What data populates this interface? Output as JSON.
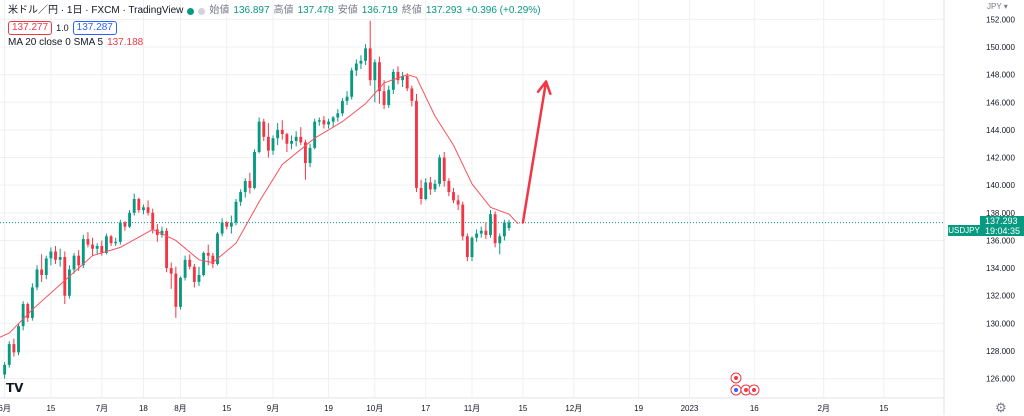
{
  "legend": {
    "symbol": "米ドル／円 · 1日 · FXCM · TradingView",
    "open_label": "始値",
    "open": "136.897",
    "high_label": "高値",
    "high": "137.478",
    "low_label": "安値",
    "low": "136.719",
    "close_label": "終値",
    "close": "137.293",
    "change": "+0.396 (+0.29%)",
    "bid": "137.277",
    "spread": "1.0",
    "ask": "137.287",
    "ma_label": "MA 20 close 0 SMA 5",
    "ma_value": "137.188"
  },
  "price_axis": {
    "unit": "JPY",
    "ticks": [
      "126.000",
      "128.000",
      "130.000",
      "132.000",
      "134.000",
      "136.000",
      "138.000",
      "140.000",
      "142.000",
      "144.000",
      "146.000",
      "148.000",
      "150.000",
      "152.000"
    ]
  },
  "last_price": {
    "symbol": "USDJPY",
    "price": "137.293",
    "countdown": "19:04:35"
  },
  "time_axis": {
    "ticks": [
      {
        "label": "6月",
        "bar": 0
      },
      {
        "label": "15",
        "bar": 10
      },
      {
        "label": "7月",
        "bar": 21
      },
      {
        "label": "18",
        "bar": 30
      },
      {
        "label": "8月",
        "bar": 38
      },
      {
        "label": "15",
        "bar": 48
      },
      {
        "label": "9月",
        "bar": 58
      },
      {
        "label": "19",
        "bar": 70
      },
      {
        "label": "10月",
        "bar": 80
      },
      {
        "label": "17",
        "bar": 91
      },
      {
        "label": "11月",
        "bar": 101
      },
      {
        "label": "15",
        "bar": 112
      },
      {
        "label": "12月",
        "bar": 123
      },
      {
        "label": "19",
        "bar": 137
      },
      {
        "label": "2023",
        "bar": 148
      },
      {
        "label": "16",
        "bar": 162
      },
      {
        "label": "2月",
        "bar": 177
      },
      {
        "label": "15",
        "bar": 190
      }
    ]
  },
  "colors": {
    "up": "#089981",
    "down": "#f23645",
    "ma": "#f7525f",
    "arrow": "#f23645",
    "grid": "#eef0f3"
  },
  "icons": [
    "tradingview-logo-icon",
    "gear-icon",
    "event-flag-icon"
  ],
  "chart_data": {
    "type": "candlestick",
    "title": "米ドル／円 · 1日 · FXCM",
    "ylabel": "JPY",
    "ylim": [
      124.6,
      153.4
    ],
    "x_range_bars": [
      -1,
      203
    ],
    "ohlc": [
      [
        126.3,
        127.2,
        126.0,
        127.0
      ],
      [
        127.0,
        128.7,
        126.8,
        128.5
      ],
      [
        128.5,
        128.9,
        127.6,
        127.9
      ],
      [
        127.9,
        130.0,
        127.7,
        129.8
      ],
      [
        129.8,
        131.6,
        129.5,
        131.4
      ],
      [
        131.4,
        131.5,
        130.1,
        130.4
      ],
      [
        130.4,
        132.9,
        130.2,
        132.6
      ],
      [
        132.6,
        134.2,
        132.4,
        133.9
      ],
      [
        133.9,
        135.0,
        133.0,
        133.5
      ],
      [
        133.5,
        134.9,
        133.2,
        134.7
      ],
      [
        134.7,
        135.5,
        134.2,
        135.2
      ],
      [
        135.2,
        135.6,
        134.3,
        134.6
      ],
      [
        134.6,
        135.4,
        134.1,
        134.8
      ],
      [
        134.8,
        135.2,
        131.4,
        132.0
      ],
      [
        132.0,
        134.2,
        131.8,
        133.9
      ],
      [
        133.9,
        135.1,
        133.6,
        134.9
      ],
      [
        134.9,
        135.3,
        133.8,
        134.2
      ],
      [
        134.2,
        136.4,
        134.0,
        136.1
      ],
      [
        136.1,
        136.6,
        135.5,
        135.7
      ],
      [
        135.7,
        136.2,
        134.9,
        135.4
      ],
      [
        135.4,
        135.8,
        135.0,
        135.6
      ],
      [
        135.6,
        136.0,
        134.9,
        135.1
      ],
      [
        135.1,
        136.5,
        135.0,
        136.3
      ],
      [
        136.3,
        136.4,
        135.6,
        135.8
      ],
      [
        135.8,
        136.2,
        135.6,
        135.9
      ],
      [
        135.9,
        137.5,
        135.7,
        137.3
      ],
      [
        137.3,
        137.4,
        136.7,
        137.0
      ],
      [
        137.0,
        138.2,
        136.9,
        138.0
      ],
      [
        138.0,
        139.4,
        137.8,
        139.0
      ],
      [
        139.0,
        139.1,
        138.0,
        138.2
      ],
      [
        138.2,
        138.6,
        137.9,
        138.4
      ],
      [
        138.4,
        138.9,
        137.8,
        138.0
      ],
      [
        138.0,
        138.3,
        136.5,
        136.8
      ],
      [
        136.8,
        137.2,
        135.9,
        136.4
      ],
      [
        136.4,
        137.0,
        136.2,
        136.7
      ],
      [
        136.7,
        136.9,
        133.7,
        134.0
      ],
      [
        134.0,
        134.4,
        132.5,
        133.6
      ],
      [
        133.6,
        134.1,
        130.4,
        131.2
      ],
      [
        131.2,
        133.4,
        131.0,
        133.3
      ],
      [
        133.3,
        134.9,
        133.1,
        134.6
      ],
      [
        134.6,
        135.0,
        133.9,
        134.1
      ],
      [
        134.1,
        134.3,
        132.6,
        133.0
      ],
      [
        133.0,
        134.1,
        132.7,
        133.5
      ],
      [
        133.5,
        135.2,
        133.4,
        135.1
      ],
      [
        135.1,
        135.7,
        134.2,
        134.9
      ],
      [
        134.9,
        135.1,
        134.0,
        134.3
      ],
      [
        134.3,
        136.6,
        134.2,
        136.5
      ],
      [
        136.5,
        137.6,
        136.3,
        137.3
      ],
      [
        137.3,
        137.4,
        136.8,
        137.0
      ],
      [
        137.0,
        137.8,
        136.5,
        137.3
      ],
      [
        137.3,
        139.0,
        137.1,
        138.8
      ],
      [
        138.8,
        139.7,
        138.5,
        139.5
      ],
      [
        139.5,
        140.5,
        139.1,
        140.3
      ],
      [
        140.3,
        140.9,
        139.4,
        139.8
      ],
      [
        139.8,
        142.6,
        139.7,
        142.4
      ],
      [
        142.4,
        144.9,
        142.3,
        144.6
      ],
      [
        144.6,
        144.8,
        143.2,
        143.5
      ],
      [
        143.5,
        144.5,
        142.0,
        142.5
      ],
      [
        142.5,
        143.6,
        142.2,
        143.4
      ],
      [
        143.4,
        144.5,
        142.9,
        144.0
      ],
      [
        144.0,
        144.7,
        143.3,
        143.7
      ],
      [
        143.7,
        143.8,
        142.4,
        143.0
      ],
      [
        143.0,
        143.6,
        142.6,
        143.2
      ],
      [
        143.2,
        143.9,
        142.8,
        143.5
      ],
      [
        143.5,
        144.2,
        142.9,
        143.1
      ],
      [
        143.1,
        143.3,
        140.4,
        141.6
      ],
      [
        141.6,
        143.0,
        141.3,
        142.7
      ],
      [
        142.7,
        144.8,
        142.6,
        144.6
      ],
      [
        144.6,
        144.9,
        144.3,
        144.7
      ],
      [
        144.7,
        145.0,
        144.1,
        144.4
      ],
      [
        144.4,
        144.8,
        144.1,
        144.6
      ],
      [
        144.6,
        145.0,
        144.2,
        144.9
      ],
      [
        144.9,
        145.5,
        144.6,
        145.2
      ],
      [
        145.2,
        146.3,
        145.0,
        146.1
      ],
      [
        146.1,
        146.8,
        145.8,
        146.4
      ],
      [
        146.4,
        148.5,
        146.2,
        148.3
      ],
      [
        148.3,
        149.1,
        147.9,
        148.8
      ],
      [
        148.8,
        149.4,
        148.4,
        149.0
      ],
      [
        149.0,
        150.2,
        148.7,
        149.9
      ],
      [
        149.9,
        151.9,
        147.2,
        147.6
      ],
      [
        147.6,
        149.1,
        146.0,
        148.9
      ],
      [
        148.9,
        149.3,
        145.9,
        146.8
      ],
      [
        146.8,
        147.6,
        145.5,
        145.8
      ],
      [
        145.8,
        147.2,
        145.6,
        146.9
      ],
      [
        146.9,
        148.4,
        146.6,
        148.2
      ],
      [
        148.2,
        148.6,
        147.3,
        147.6
      ],
      [
        147.6,
        148.2,
        147.1,
        147.9
      ],
      [
        147.9,
        148.1,
        146.8,
        147.0
      ],
      [
        147.0,
        147.2,
        145.7,
        146.1
      ],
      [
        146.1,
        146.6,
        139.5,
        139.8
      ],
      [
        139.8,
        140.4,
        138.6,
        139.0
      ],
      [
        139.0,
        140.5,
        138.9,
        140.2
      ],
      [
        140.2,
        140.6,
        139.3,
        139.7
      ],
      [
        139.7,
        140.4,
        139.5,
        140.1
      ],
      [
        140.1,
        142.2,
        139.9,
        142.0
      ],
      [
        142.0,
        142.4,
        139.9,
        140.3
      ],
      [
        140.3,
        140.5,
        139.2,
        139.5
      ],
      [
        139.5,
        139.8,
        138.7,
        138.9
      ],
      [
        138.9,
        139.3,
        138.2,
        138.6
      ],
      [
        138.6,
        138.8,
        136.0,
        136.3
      ],
      [
        136.3,
        136.5,
        134.5,
        134.8
      ],
      [
        134.8,
        136.3,
        134.5,
        136.2
      ],
      [
        136.2,
        136.8,
        135.9,
        136.5
      ],
      [
        136.5,
        137.0,
        136.2,
        136.7
      ],
      [
        136.7,
        137.3,
        136.1,
        136.4
      ],
      [
        136.4,
        138.2,
        136.2,
        137.9
      ],
      [
        137.9,
        138.1,
        135.5,
        135.8
      ],
      [
        135.8,
        136.5,
        135.0,
        136.3
      ],
      [
        136.3,
        137.5,
        136.0,
        137.3
      ],
      [
        136.9,
        137.5,
        136.7,
        137.3
      ]
    ],
    "moving_average": {
      "label": "MA 20 close 0 SMA 5",
      "last": 137.188,
      "points": [
        [
          -1,
          129.0
        ],
        [
          1,
          129.3
        ],
        [
          6,
          131.0
        ],
        [
          12,
          132.8
        ],
        [
          19,
          134.9
        ],
        [
          25,
          135.5
        ],
        [
          32,
          136.8
        ],
        [
          37,
          136.0
        ],
        [
          42,
          134.6
        ],
        [
          45,
          134.4
        ],
        [
          50,
          135.8
        ],
        [
          55,
          138.8
        ],
        [
          60,
          141.5
        ],
        [
          67,
          143.4
        ],
        [
          73,
          144.6
        ],
        [
          78,
          145.9
        ],
        [
          82,
          147.4
        ],
        [
          87,
          148.0
        ],
        [
          89,
          147.8
        ],
        [
          93,
          145.0
        ],
        [
          97,
          142.9
        ],
        [
          101,
          140.1
        ],
        [
          105,
          138.4
        ],
        [
          109,
          137.9
        ],
        [
          111,
          137.2
        ]
      ]
    },
    "annotation": {
      "type": "arrow",
      "from": [
        112,
        137.3
      ],
      "to": [
        117,
        147.5
      ]
    }
  }
}
